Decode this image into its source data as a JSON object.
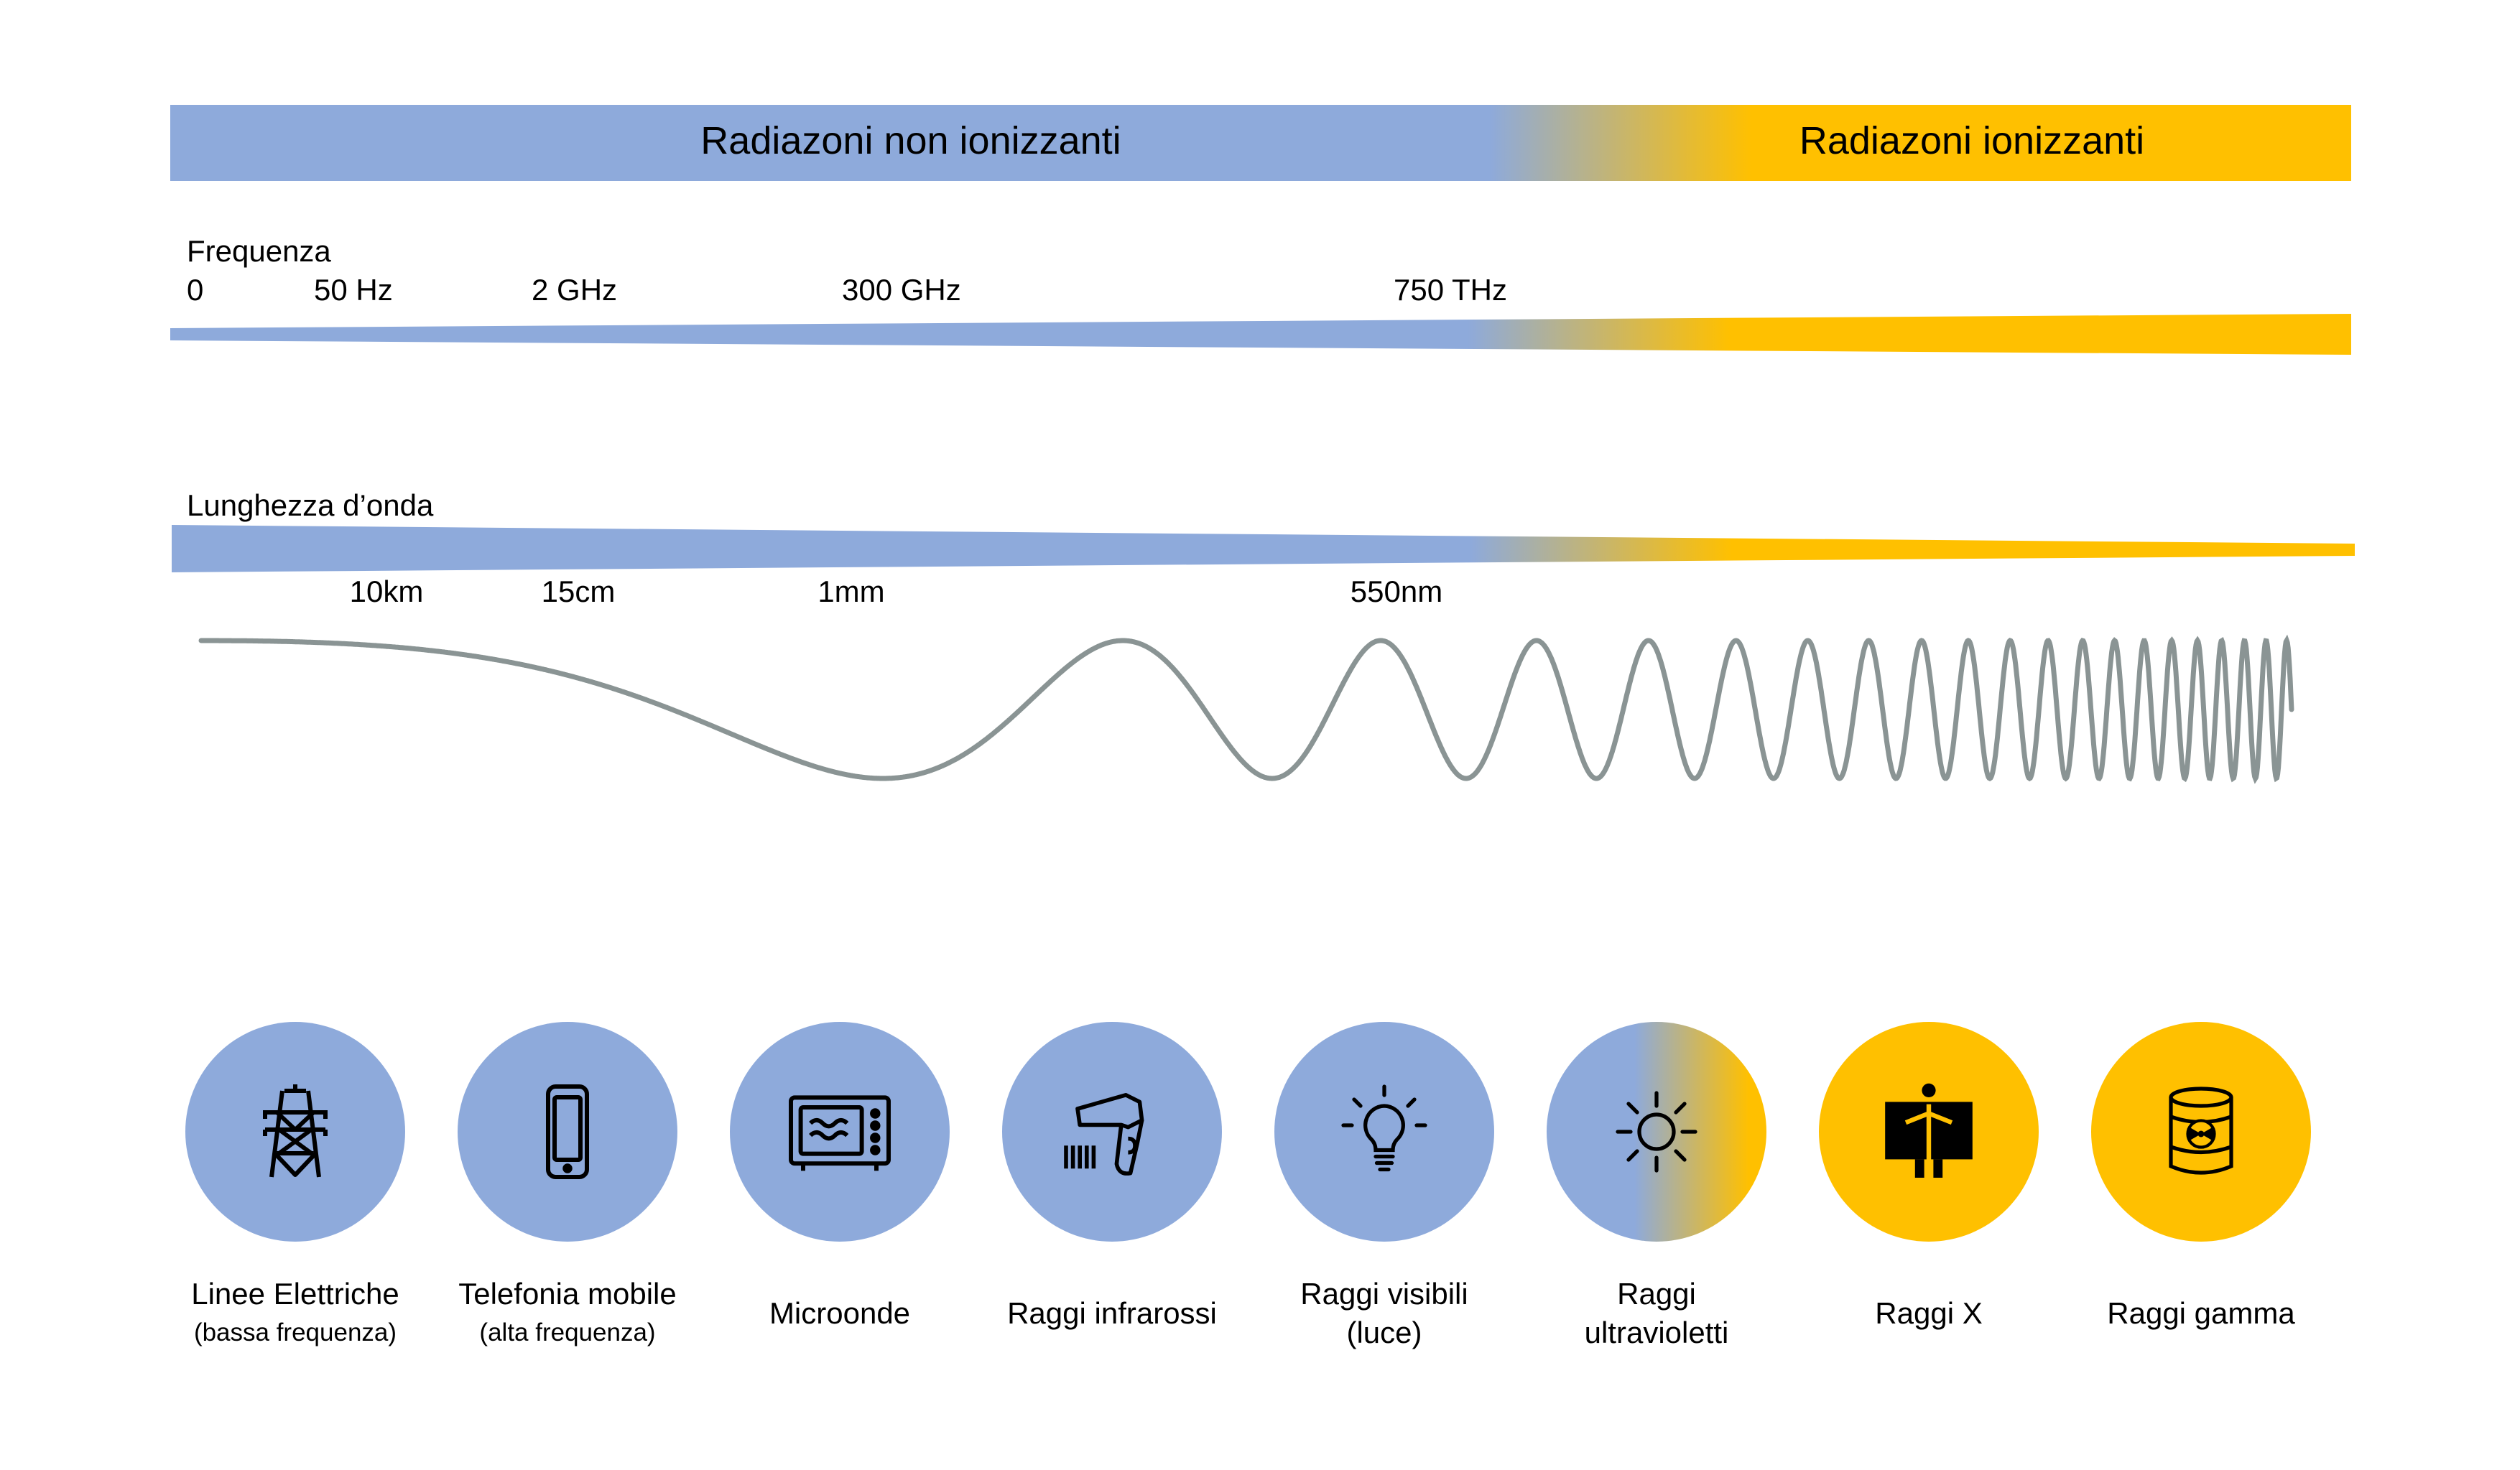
{
  "colors": {
    "non_ionizing": "#8eaadb",
    "ionizing": "#ffc000",
    "wave": "#8a9494"
  },
  "bands": {
    "non_ionizing": "Radiazoni non ionizzanti",
    "ionizing": "Radiazoni ionizzanti"
  },
  "frequency": {
    "label": "Frequenza",
    "ticks": [
      "0",
      "50 Hz",
      "2 GHz",
      "300 GHz",
      "750 THz"
    ]
  },
  "wavelength": {
    "label": "Lunghezza d’onda",
    "ticks": [
      "10km",
      "15cm",
      "1mm",
      "550nm"
    ]
  },
  "sources": [
    {
      "icon": "power-tower-icon",
      "title": "Linee Elettriche",
      "subtitle": "(bassa frequenza)",
      "fill": "non_ionizing"
    },
    {
      "icon": "smartphone-icon",
      "title": "Telefonia mobile",
      "subtitle": "(alta frequenza)",
      "fill": "non_ionizing"
    },
    {
      "icon": "microwave-icon",
      "title": "Microonde",
      "subtitle": "",
      "fill": "non_ionizing"
    },
    {
      "icon": "infrared-thermometer-icon",
      "title": "Raggi infrarossi",
      "subtitle": "",
      "fill": "non_ionizing"
    },
    {
      "icon": "light-bulb-icon",
      "title": "Raggi visibili\n(luce)",
      "subtitle": "",
      "fill": "non_ionizing"
    },
    {
      "icon": "sun-icon",
      "title": "Raggi\nultravioletti",
      "subtitle": "",
      "fill": "gradient"
    },
    {
      "icon": "xray-person-icon",
      "title": "Raggi X",
      "subtitle": "",
      "fill": "ionizing"
    },
    {
      "icon": "radioactive-barrel-icon",
      "title": "Raggi gamma",
      "subtitle": "",
      "fill": "ionizing"
    }
  ]
}
